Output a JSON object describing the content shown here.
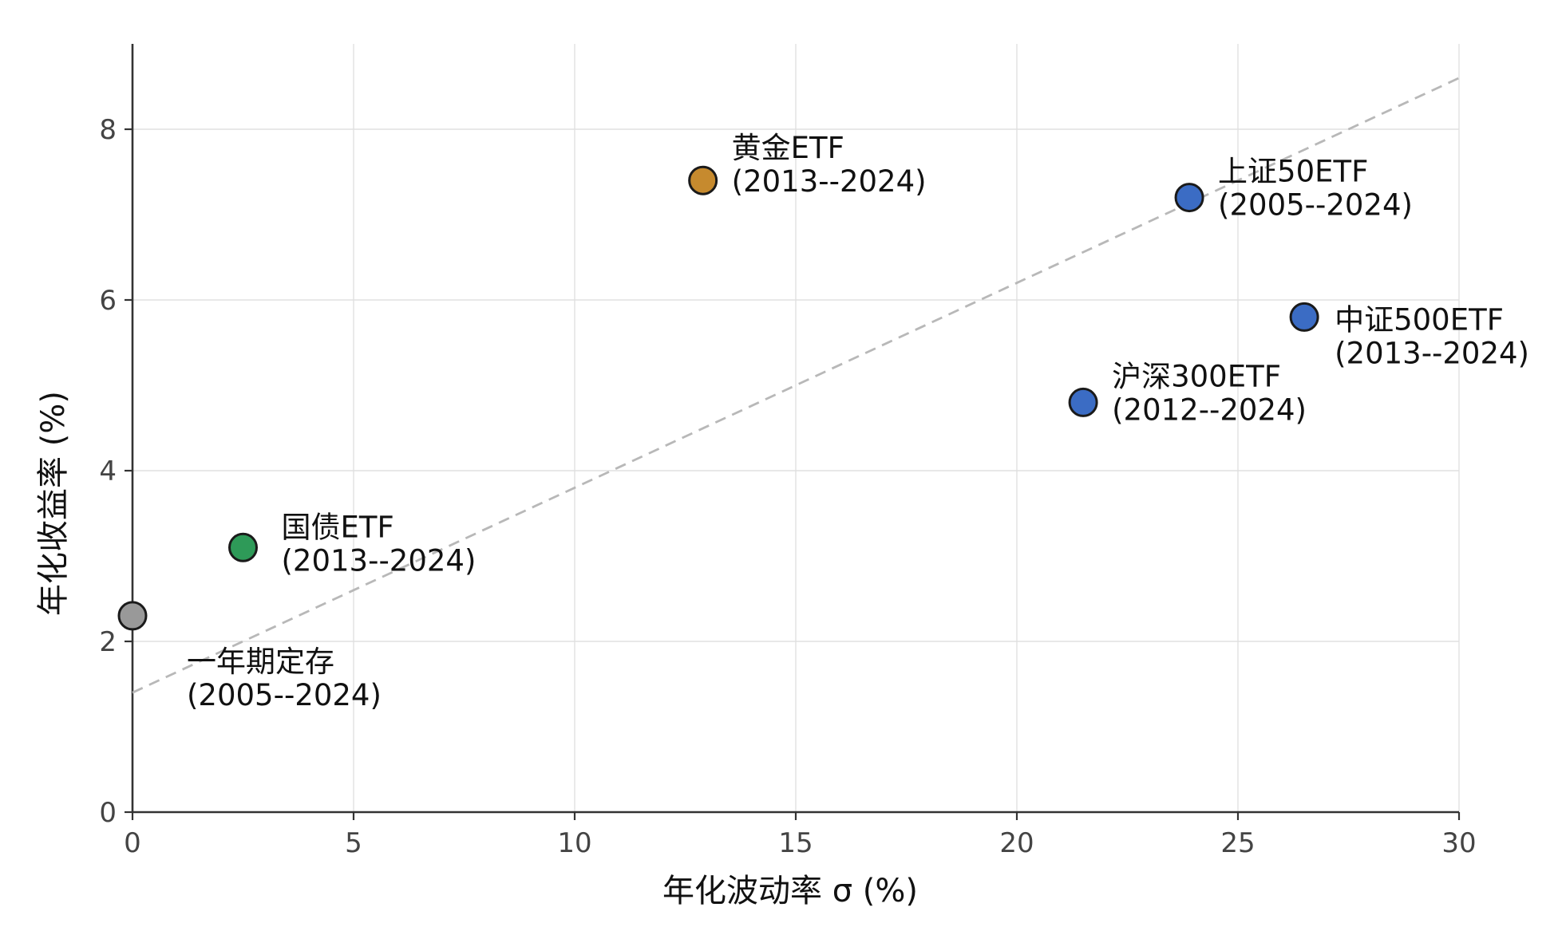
{
  "chart_data": {
    "type": "scatter",
    "title": "",
    "xlabel": "年化波动率 σ (%)",
    "ylabel": "年化收益率 (%)",
    "xlim": [
      0,
      30
    ],
    "ylim": [
      0,
      9
    ],
    "xticks": [
      0,
      5,
      10,
      15,
      20,
      25,
      30
    ],
    "yticks": [
      0,
      2,
      4,
      6,
      8
    ],
    "grid": true,
    "trendline": {
      "x": [
        0,
        30
      ],
      "y": [
        1.4,
        8.6
      ],
      "style": "dashed",
      "color": "#b8b8b8"
    },
    "points": [
      {
        "name": "一年期定存",
        "period": "(2005--2024)",
        "x": 0.0,
        "y": 2.3,
        "color": "#999999"
      },
      {
        "name": "国债ETF",
        "period": "(2013--2024)",
        "x": 2.5,
        "y": 3.1,
        "color": "#2e9a58"
      },
      {
        "name": "黄金ETF",
        "period": "(2013--2024)",
        "x": 12.9,
        "y": 7.4,
        "color": "#c68a2e"
      },
      {
        "name": "上证50ETF",
        "period": "(2005--2024)",
        "x": 23.9,
        "y": 7.2,
        "color": "#3b6cc4"
      },
      {
        "name": "中证500ETF",
        "period": "(2013--2024)",
        "x": 26.5,
        "y": 5.8,
        "color": "#3b6cc4"
      },
      {
        "name": "沪深300ETF",
        "period": "(2012--2024)",
        "x": 21.5,
        "y": 4.8,
        "color": "#3b6cc4"
      }
    ]
  }
}
